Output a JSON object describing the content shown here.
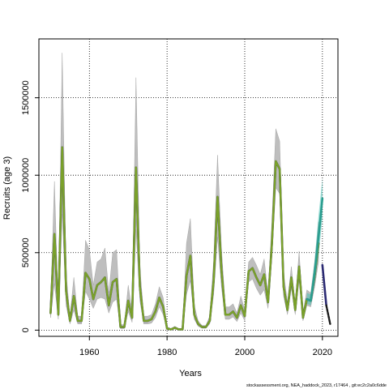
{
  "chart_data": {
    "type": "line",
    "xlabel": "Years",
    "ylabel": "Recruits (age 3)",
    "xlim": [
      1947,
      2024
    ],
    "ylim": [
      -40000,
      1880000
    ],
    "grid": true,
    "x_ticks": [
      1960,
      1980,
      2000,
      2020
    ],
    "x_tick_labels": [
      "1960",
      "1980",
      "2000",
      "2020"
    ],
    "y_ticks": [
      0,
      500000,
      1000000,
      1500000
    ],
    "y_tick_labels": [
      "0",
      "500000",
      "1000000",
      "1500000"
    ],
    "source_note": "stockassessment.org, NEA_haddock_2023, r17464 , git:ec2c2a0c6dde",
    "colors": {
      "band": "#bebebe",
      "band_teal": "#48c1b4",
      "green_line": "#7aa12a",
      "green_line_dark": "#4d6f1a",
      "teal_line": "#2a9d8f",
      "navy_line": "#2b2a72",
      "black_line": "#1a1a1a",
      "grid": "#000000"
    },
    "series": [
      {
        "role": "estimate",
        "x": [
          1950,
          1951,
          1952,
          1953,
          1954,
          1955,
          1956,
          1957,
          1958,
          1959,
          1960,
          1961,
          1962,
          1963,
          1964,
          1965,
          1966,
          1967,
          1968,
          1969,
          1970,
          1971,
          1972,
          1973,
          1974,
          1975,
          1976,
          1977,
          1978,
          1979,
          1980,
          1981,
          1982,
          1983,
          1984,
          1985,
          1986,
          1987,
          1988,
          1989,
          1990,
          1991,
          1992,
          1993,
          1994,
          1995,
          1996,
          1997,
          1998,
          1999,
          2000,
          2001,
          2002,
          2003,
          2004,
          2005,
          2006,
          2007,
          2008,
          2009,
          2010,
          2011,
          2012,
          2013,
          2014,
          2015,
          2016,
          2017,
          2018,
          2019
        ],
        "y": [
          110000,
          620000,
          100000,
          1180000,
          250000,
          60000,
          220000,
          60000,
          60000,
          370000,
          330000,
          200000,
          290000,
          310000,
          340000,
          160000,
          310000,
          330000,
          20000,
          20000,
          190000,
          80000,
          1050000,
          280000,
          60000,
          60000,
          70000,
          120000,
          210000,
          150000,
          10000,
          5000,
          15000,
          5000,
          5000,
          350000,
          480000,
          100000,
          40000,
          20000,
          20000,
          60000,
          320000,
          860000,
          390000,
          100000,
          100000,
          120000,
          80000,
          160000,
          90000,
          380000,
          400000,
          340000,
          290000,
          360000,
          180000,
          560000,
          1090000,
          1040000,
          280000,
          130000,
          340000,
          130000,
          410000,
          80000,
          200000,
          190000,
          350000,
          560000
        ],
        "lower": [
          80000,
          300000,
          70000,
          750000,
          160000,
          40000,
          130000,
          40000,
          40000,
          250000,
          200000,
          140000,
          200000,
          210000,
          200000,
          110000,
          180000,
          200000,
          10000,
          10000,
          120000,
          50000,
          650000,
          190000,
          40000,
          40000,
          45000,
          80000,
          150000,
          100000,
          5000,
          2000,
          8000,
          2000,
          2000,
          230000,
          320000,
          70000,
          25000,
          12000,
          12000,
          40000,
          230000,
          600000,
          280000,
          70000,
          70000,
          85000,
          55000,
          110000,
          60000,
          310000,
          330000,
          270000,
          225000,
          260000,
          140000,
          470000,
          920000,
          880000,
          220000,
          100000,
          270000,
          100000,
          320000,
          60000,
          160000,
          150000,
          280000,
          440000
        ],
        "upper": [
          150000,
          960000,
          140000,
          1790000,
          370000,
          90000,
          340000,
          90000,
          90000,
          580000,
          520000,
          290000,
          440000,
          460000,
          530000,
          240000,
          500000,
          520000,
          35000,
          35000,
          290000,
          120000,
          1630000,
          410000,
          90000,
          90000,
          100000,
          170000,
          280000,
          210000,
          20000,
          10000,
          25000,
          10000,
          10000,
          560000,
          720000,
          160000,
          60000,
          30000,
          30000,
          90000,
          450000,
          1130000,
          530000,
          150000,
          150000,
          170000,
          110000,
          220000,
          130000,
          440000,
          470000,
          420000,
          360000,
          460000,
          230000,
          700000,
          1300000,
          1220000,
          370000,
          180000,
          410000,
          170000,
          510000,
          110000,
          260000,
          240000,
          440000,
          700000
        ]
      },
      {
        "role": "recent-estimate",
        "x": [
          2016,
          2017,
          2018,
          2019,
          2020
        ],
        "y": [
          200000,
          190000,
          370000,
          600000,
          850000
        ],
        "lower": [
          170000,
          160000,
          300000,
          480000,
          720000
        ],
        "upper": [
          240000,
          230000,
          450000,
          740000,
          980000
        ]
      },
      {
        "role": "forecast",
        "x": [
          2020,
          2021,
          2022
        ],
        "y": [
          420000,
          160000,
          40000
        ]
      }
    ]
  }
}
